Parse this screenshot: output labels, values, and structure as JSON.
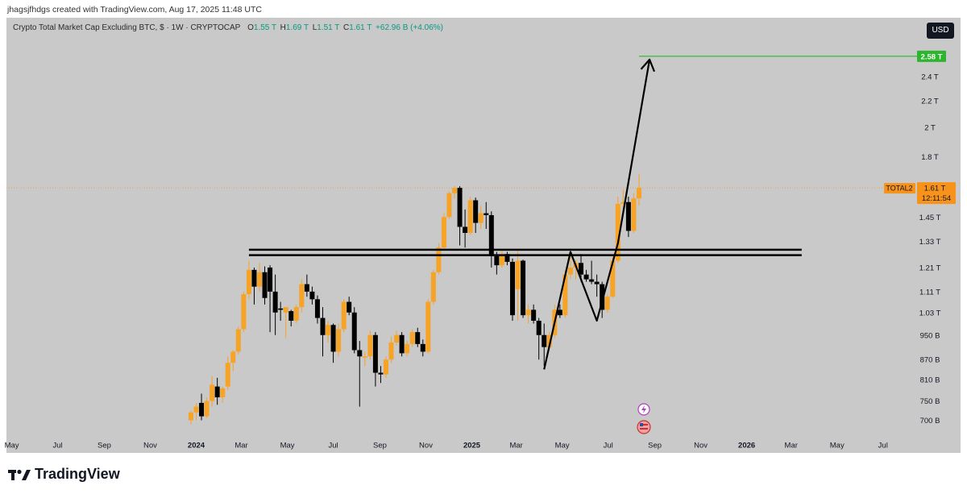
{
  "header": {
    "credit": "jhagsjfhdgs created with TradingView.com, Aug 17, 2025 11:48 UTC"
  },
  "legend": {
    "symbol": "Crypto Total Market Cap Excluding BTC, $ · 1W · CRYPTOCAP",
    "o_label": "O",
    "o_value": "1.55 T",
    "h_label": "H",
    "h_value": "1.69 T",
    "l_label": "L",
    "l_value": "1.51 T",
    "c_label": "C",
    "c_value": "1.61 T",
    "change": "+62.96 B (+4.06%)"
  },
  "currency_button": "USD",
  "price_tags": {
    "target": "2.58 T",
    "ticker": "TOTAL2",
    "current_price": "1.61 T",
    "countdown": "12:11:54"
  },
  "footer": {
    "brand": "TradingView"
  },
  "colors": {
    "background": "#c9c9c9",
    "candle": "#f7a325",
    "candle_down": "#000000",
    "target_line": "#2db52d",
    "price_tag": "#f7931a"
  },
  "chart_data": {
    "type": "candlestick",
    "title": "Crypto Total Market Cap Excluding BTC, $ · 1W · CRYPTOCAP",
    "y_scale": "log",
    "y_ticks": [
      "2.4 T",
      "2.2 T",
      "2 T",
      "1.8 T",
      "1.45 T",
      "1.33 T",
      "1.21 T",
      "1.11 T",
      "1.03 T",
      "950 B",
      "870 B",
      "810 B",
      "750 B",
      "700 B"
    ],
    "y_tick_values": [
      2400,
      2200,
      2000,
      1800,
      1450,
      1330,
      1210,
      1110,
      1030,
      950,
      870,
      810,
      750,
      700
    ],
    "y_unit": "B",
    "x_ticks": [
      {
        "label": "May",
        "date": "2023-05-01",
        "bold": false
      },
      {
        "label": "Jul",
        "date": "2023-07-01",
        "bold": false
      },
      {
        "label": "Sep",
        "date": "2023-09-01",
        "bold": false
      },
      {
        "label": "Nov",
        "date": "2023-11-01",
        "bold": false
      },
      {
        "label": "2024",
        "date": "2024-01-01",
        "bold": true
      },
      {
        "label": "Mar",
        "date": "2024-03-01",
        "bold": false
      },
      {
        "label": "May",
        "date": "2024-05-01",
        "bold": false
      },
      {
        "label": "Jul",
        "date": "2024-07-01",
        "bold": false
      },
      {
        "label": "Sep",
        "date": "2024-09-01",
        "bold": false
      },
      {
        "label": "Nov",
        "date": "2024-11-01",
        "bold": false
      },
      {
        "label": "2025",
        "date": "2025-01-01",
        "bold": true
      },
      {
        "label": "Mar",
        "date": "2025-03-01",
        "bold": false
      },
      {
        "label": "May",
        "date": "2025-05-01",
        "bold": false
      },
      {
        "label": "Jul",
        "date": "2025-07-01",
        "bold": false
      },
      {
        "label": "Sep",
        "date": "2025-09-01",
        "bold": false
      },
      {
        "label": "Nov",
        "date": "2025-11-01",
        "bold": false
      },
      {
        "label": "2026",
        "date": "2026-01-01",
        "bold": true
      },
      {
        "label": "Mar",
        "date": "2026-03-01",
        "bold": false
      },
      {
        "label": "May",
        "date": "2026-05-01",
        "bold": false
      },
      {
        "label": "Jul",
        "date": "2026-07-01",
        "bold": false
      }
    ],
    "candles": [
      {
        "date": "2023-12-25",
        "o": 700,
        "h": 725,
        "l": 690,
        "c": 720
      },
      {
        "date": "2024-01-01",
        "o": 720,
        "h": 745,
        "l": 700,
        "c": 735
      },
      {
        "date": "2024-01-08",
        "o": 745,
        "h": 770,
        "l": 700,
        "c": 710
      },
      {
        "date": "2024-01-15",
        "o": 710,
        "h": 760,
        "l": 705,
        "c": 750
      },
      {
        "date": "2024-01-22",
        "o": 750,
        "h": 820,
        "l": 735,
        "c": 795
      },
      {
        "date": "2024-01-29",
        "o": 790,
        "h": 815,
        "l": 740,
        "c": 760
      },
      {
        "date": "2024-02-05",
        "o": 760,
        "h": 790,
        "l": 745,
        "c": 785
      },
      {
        "date": "2024-02-12",
        "o": 790,
        "h": 880,
        "l": 780,
        "c": 860
      },
      {
        "date": "2024-02-19",
        "o": 860,
        "h": 900,
        "l": 835,
        "c": 895
      },
      {
        "date": "2024-02-26",
        "o": 895,
        "h": 980,
        "l": 885,
        "c": 970
      },
      {
        "date": "2024-03-04",
        "o": 970,
        "h": 1110,
        "l": 960,
        "c": 1100
      },
      {
        "date": "2024-03-11",
        "o": 1100,
        "h": 1240,
        "l": 1080,
        "c": 1200
      },
      {
        "date": "2024-03-18",
        "o": 1200,
        "h": 1210,
        "l": 1060,
        "c": 1130
      },
      {
        "date": "2024-03-25",
        "o": 1130,
        "h": 1230,
        "l": 1110,
        "c": 1190
      },
      {
        "date": "2024-04-01",
        "o": 1190,
        "h": 1215,
        "l": 1060,
        "c": 1085
      },
      {
        "date": "2024-04-08",
        "o": 1210,
        "h": 1220,
        "l": 960,
        "c": 1110
      },
      {
        "date": "2024-04-15",
        "o": 1110,
        "h": 1180,
        "l": 950,
        "c": 1030
      },
      {
        "date": "2024-04-22",
        "o": 1045,
        "h": 1070,
        "l": 1000,
        "c": 1040
      },
      {
        "date": "2024-04-29",
        "o": 1030,
        "h": 1050,
        "l": 940,
        "c": 1050
      },
      {
        "date": "2024-05-06",
        "o": 1035,
        "h": 1040,
        "l": 980,
        "c": 1000
      },
      {
        "date": "2024-05-13",
        "o": 1000,
        "h": 1060,
        "l": 990,
        "c": 1050
      },
      {
        "date": "2024-05-20",
        "o": 1050,
        "h": 1160,
        "l": 1030,
        "c": 1140
      },
      {
        "date": "2024-05-27",
        "o": 1140,
        "h": 1180,
        "l": 1090,
        "c": 1110
      },
      {
        "date": "2024-06-03",
        "o": 1110,
        "h": 1130,
        "l": 1060,
        "c": 1080
      },
      {
        "date": "2024-06-10",
        "o": 1080,
        "h": 1095,
        "l": 990,
        "c": 1010
      },
      {
        "date": "2024-06-17",
        "o": 1010,
        "h": 1050,
        "l": 880,
        "c": 950
      },
      {
        "date": "2024-06-24",
        "o": 950,
        "h": 1000,
        "l": 925,
        "c": 985
      },
      {
        "date": "2024-07-01",
        "o": 985,
        "h": 990,
        "l": 860,
        "c": 895
      },
      {
        "date": "2024-07-08",
        "o": 895,
        "h": 990,
        "l": 880,
        "c": 970
      },
      {
        "date": "2024-07-15",
        "o": 970,
        "h": 1080,
        "l": 960,
        "c": 1070
      },
      {
        "date": "2024-07-22",
        "o": 1070,
        "h": 1090,
        "l": 1020,
        "c": 1030
      },
      {
        "date": "2024-07-29",
        "o": 1030,
        "h": 1050,
        "l": 890,
        "c": 900
      },
      {
        "date": "2024-08-05",
        "o": 900,
        "h": 930,
        "l": 735,
        "c": 880
      },
      {
        "date": "2024-08-12",
        "o": 880,
        "h": 895,
        "l": 850,
        "c": 880
      },
      {
        "date": "2024-08-19",
        "o": 880,
        "h": 965,
        "l": 870,
        "c": 950
      },
      {
        "date": "2024-08-26",
        "o": 950,
        "h": 960,
        "l": 790,
        "c": 830
      },
      {
        "date": "2024-09-02",
        "o": 830,
        "h": 850,
        "l": 800,
        "c": 825
      },
      {
        "date": "2024-09-09",
        "o": 825,
        "h": 880,
        "l": 815,
        "c": 870
      },
      {
        "date": "2024-09-16",
        "o": 870,
        "h": 945,
        "l": 860,
        "c": 925
      },
      {
        "date": "2024-09-23",
        "o": 925,
        "h": 965,
        "l": 915,
        "c": 950
      },
      {
        "date": "2024-09-30",
        "o": 950,
        "h": 960,
        "l": 880,
        "c": 890
      },
      {
        "date": "2024-10-07",
        "o": 890,
        "h": 930,
        "l": 880,
        "c": 920
      },
      {
        "date": "2024-10-14",
        "o": 920,
        "h": 970,
        "l": 910,
        "c": 960
      },
      {
        "date": "2024-10-21",
        "o": 960,
        "h": 975,
        "l": 910,
        "c": 920
      },
      {
        "date": "2024-10-28",
        "o": 920,
        "h": 935,
        "l": 880,
        "c": 895
      },
      {
        "date": "2024-11-04",
        "o": 895,
        "h": 1080,
        "l": 890,
        "c": 1070
      },
      {
        "date": "2024-11-11",
        "o": 1070,
        "h": 1200,
        "l": 1060,
        "c": 1190
      },
      {
        "date": "2024-11-18",
        "o": 1190,
        "h": 1320,
        "l": 1180,
        "c": 1300
      },
      {
        "date": "2024-11-25",
        "o": 1300,
        "h": 1470,
        "l": 1290,
        "c": 1450
      },
      {
        "date": "2024-12-02",
        "o": 1450,
        "h": 1590,
        "l": 1440,
        "c": 1580
      },
      {
        "date": "2024-12-09",
        "o": 1580,
        "h": 1620,
        "l": 1550,
        "c": 1610
      },
      {
        "date": "2024-12-16",
        "o": 1610,
        "h": 1620,
        "l": 1310,
        "c": 1400
      },
      {
        "date": "2024-12-23",
        "o": 1400,
        "h": 1490,
        "l": 1300,
        "c": 1370
      },
      {
        "date": "2024-12-30",
        "o": 1370,
        "h": 1560,
        "l": 1360,
        "c": 1540
      },
      {
        "date": "2025-01-06",
        "o": 1540,
        "h": 1555,
        "l": 1370,
        "c": 1420
      },
      {
        "date": "2025-01-13",
        "o": 1420,
        "h": 1510,
        "l": 1390,
        "c": 1470
      },
      {
        "date": "2025-01-20",
        "o": 1470,
        "h": 1530,
        "l": 1390,
        "c": 1460
      },
      {
        "date": "2025-01-27",
        "o": 1460,
        "h": 1480,
        "l": 1210,
        "c": 1260
      },
      {
        "date": "2025-02-03",
        "o": 1260,
        "h": 1280,
        "l": 1180,
        "c": 1220
      },
      {
        "date": "2025-02-10",
        "o": 1220,
        "h": 1290,
        "l": 1210,
        "c": 1270
      },
      {
        "date": "2025-02-17",
        "o": 1270,
        "h": 1280,
        "l": 1220,
        "c": 1235
      },
      {
        "date": "2025-02-24",
        "o": 1235,
        "h": 1250,
        "l": 1000,
        "c": 1020
      },
      {
        "date": "2025-03-03",
        "o": 1120,
        "h": 1290,
        "l": 1000,
        "c": 1240
      },
      {
        "date": "2025-03-10",
        "o": 1240,
        "h": 1245,
        "l": 1010,
        "c": 1020
      },
      {
        "date": "2025-03-17",
        "o": 1020,
        "h": 1060,
        "l": 990,
        "c": 1040
      },
      {
        "date": "2025-03-24",
        "o": 1040,
        "h": 1060,
        "l": 990,
        "c": 1000
      },
      {
        "date": "2025-03-31",
        "o": 1000,
        "h": 1010,
        "l": 870,
        "c": 950
      },
      {
        "date": "2025-04-07",
        "o": 950,
        "h": 990,
        "l": 850,
        "c": 910
      },
      {
        "date": "2025-04-14",
        "o": 910,
        "h": 960,
        "l": 900,
        "c": 950
      },
      {
        "date": "2025-04-21",
        "o": 950,
        "h": 1060,
        "l": 940,
        "c": 1040
      },
      {
        "date": "2025-04-28",
        "o": 1040,
        "h": 1060,
        "l": 1010,
        "c": 1020
      },
      {
        "date": "2025-05-05",
        "o": 1020,
        "h": 1200,
        "l": 1010,
        "c": 1180
      },
      {
        "date": "2025-05-12",
        "o": 1180,
        "h": 1280,
        "l": 1160,
        "c": 1210
      },
      {
        "date": "2025-05-19",
        "o": 1210,
        "h": 1245,
        "l": 1160,
        "c": 1230
      },
      {
        "date": "2025-05-26",
        "o": 1230,
        "h": 1270,
        "l": 1150,
        "c": 1180
      },
      {
        "date": "2025-06-02",
        "o": 1180,
        "h": 1200,
        "l": 1150,
        "c": 1160
      },
      {
        "date": "2025-06-09",
        "o": 1160,
        "h": 1240,
        "l": 1140,
        "c": 1150
      },
      {
        "date": "2025-06-16",
        "o": 1150,
        "h": 1180,
        "l": 1090,
        "c": 1140
      },
      {
        "date": "2025-06-23",
        "o": 1140,
        "h": 1150,
        "l": 1010,
        "c": 1040
      },
      {
        "date": "2025-06-30",
        "o": 1040,
        "h": 1100,
        "l": 1030,
        "c": 1090
      },
      {
        "date": "2025-07-07",
        "o": 1090,
        "h": 1260,
        "l": 1085,
        "c": 1240
      },
      {
        "date": "2025-07-14",
        "o": 1240,
        "h": 1560,
        "l": 1230,
        "c": 1520
      },
      {
        "date": "2025-07-21",
        "o": 1520,
        "h": 1600,
        "l": 1460,
        "c": 1530
      },
      {
        "date": "2025-07-28",
        "o": 1530,
        "h": 1560,
        "l": 1350,
        "c": 1380
      },
      {
        "date": "2025-08-04",
        "o": 1380,
        "h": 1580,
        "l": 1370,
        "c": 1550
      },
      {
        "date": "2025-08-11",
        "o": 1550,
        "h": 1690,
        "l": 1510,
        "c": 1610
      }
    ],
    "resistance_zone": {
      "upper": 1290,
      "lower": 1265,
      "from": "2024-03-11",
      "to": "2026-03-15"
    },
    "target_level": {
      "value": 2580,
      "from": "2025-08-11",
      "to": "2026-08-01"
    },
    "projection_path": [
      {
        "date": "2025-04-07",
        "value": 840
      },
      {
        "date": "2025-05-12",
        "value": 1280
      },
      {
        "date": "2025-06-16",
        "value": 1000
      },
      {
        "date": "2025-07-14",
        "value": 1320
      },
      {
        "date": "2025-08-25",
        "value": 2550
      }
    ]
  }
}
